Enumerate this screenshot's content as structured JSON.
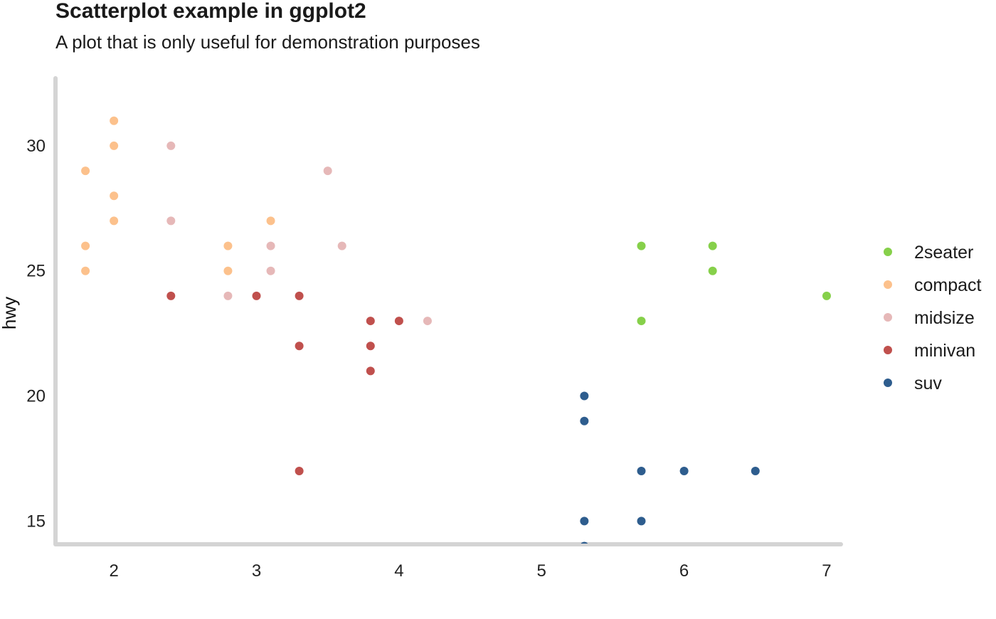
{
  "chart_data": {
    "type": "scatter",
    "title": "Scatterplot example in ggplot2",
    "subtitle": "A plot that is only useful for demonstration purposes",
    "xlabel": "",
    "ylabel": "hwy",
    "xlim": [
      1.6,
      7.1
    ],
    "ylim": [
      14.1,
      32.7
    ],
    "x_ticks": [
      2,
      3,
      4,
      5,
      6,
      7
    ],
    "y_ticks": [
      15,
      20,
      25,
      30
    ],
    "grid": false,
    "legend_position": "right",
    "series": [
      {
        "name": "2seater",
        "color": "#86d04a",
        "points": [
          [
            5.7,
            26
          ],
          [
            5.7,
            23
          ],
          [
            6.2,
            26
          ],
          [
            6.2,
            25
          ],
          [
            7.0,
            24
          ]
        ]
      },
      {
        "name": "compact",
        "color": "#fcc18c",
        "points": [
          [
            1.8,
            29
          ],
          [
            1.8,
            26
          ],
          [
            1.8,
            25
          ],
          [
            2.0,
            31
          ],
          [
            2.0,
            30
          ],
          [
            2.0,
            28
          ],
          [
            2.0,
            27
          ],
          [
            2.8,
            26
          ],
          [
            2.8,
            25
          ],
          [
            3.1,
            27
          ]
        ]
      },
      {
        "name": "midsize",
        "color": "#e6b8b8",
        "points": [
          [
            2.4,
            30
          ],
          [
            2.4,
            27
          ],
          [
            2.8,
            24
          ],
          [
            3.1,
            26
          ],
          [
            3.1,
            25
          ],
          [
            3.5,
            29
          ],
          [
            3.6,
            26
          ],
          [
            4.2,
            23
          ]
        ]
      },
      {
        "name": "minivan",
        "color": "#c0504d",
        "points": [
          [
            2.4,
            24
          ],
          [
            3.0,
            24
          ],
          [
            3.3,
            24
          ],
          [
            3.3,
            22
          ],
          [
            3.3,
            17
          ],
          [
            3.8,
            23
          ],
          [
            3.8,
            22
          ],
          [
            3.8,
            21
          ],
          [
            4.0,
            23
          ]
        ]
      },
      {
        "name": "suv",
        "color": "#2e5d8e",
        "points": [
          [
            5.3,
            20
          ],
          [
            5.3,
            19
          ],
          [
            5.3,
            15
          ],
          [
            5.3,
            14
          ],
          [
            5.7,
            17
          ],
          [
            5.7,
            15
          ],
          [
            6.0,
            17
          ],
          [
            6.5,
            17
          ]
        ]
      }
    ]
  }
}
